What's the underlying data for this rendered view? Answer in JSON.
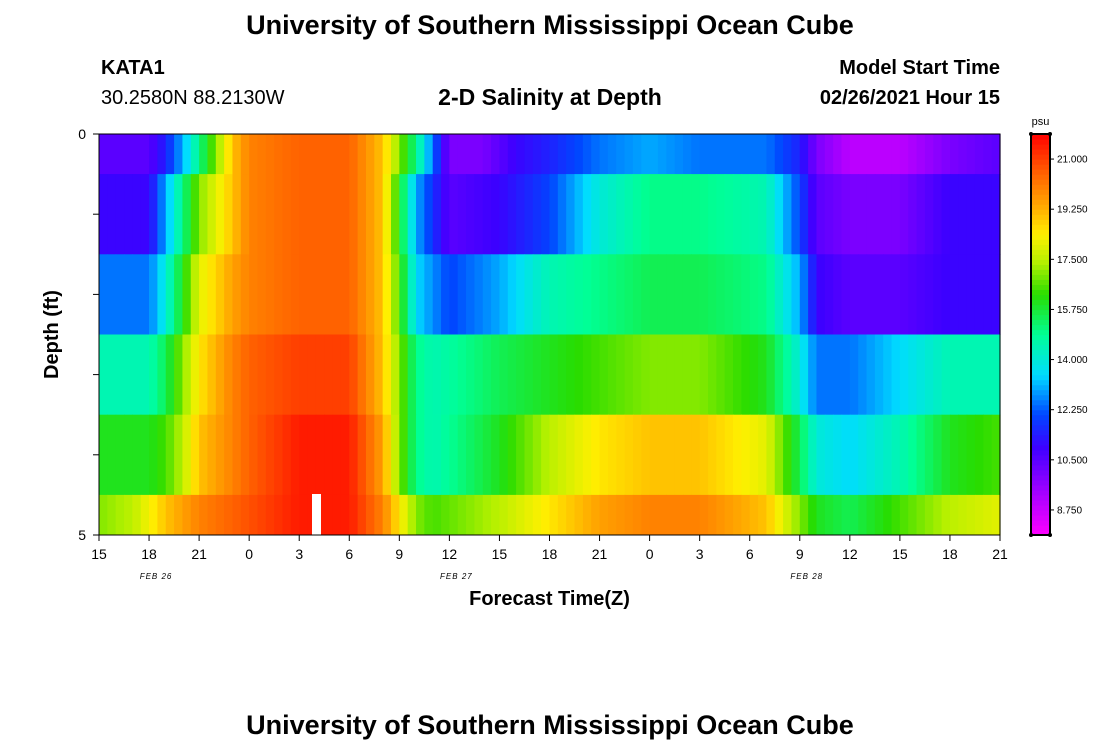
{
  "header": {
    "title": "University of Southern Mississippi Ocean Cube",
    "station": "KATA1",
    "coordinates": "30.2580N 88.2130W",
    "subtitle": "2-D Salinity at Depth",
    "model_start_label": "Model Start Time",
    "model_start_value": "02/26/2021 Hour 15"
  },
  "footer": {
    "title": "University of Southern Mississippi Ocean Cube"
  },
  "chart_data": {
    "type": "heatmap",
    "title": "2-D Salinity at Depth",
    "xlabel": "Forecast Time(Z)",
    "ylabel": "Depth (ft)",
    "ylim": [
      0,
      5
    ],
    "y_tick_labels": [
      "0",
      "5"
    ],
    "x_tick_labels": [
      "15",
      "18",
      "21",
      "0",
      "3",
      "6",
      "9",
      "12",
      "15",
      "18",
      "21",
      "0",
      "3",
      "6",
      "9",
      "12",
      "15",
      "18",
      "21"
    ],
    "date_labels": [
      {
        "text": "FEB 26",
        "at_tick": 1
      },
      {
        "text": "FEB 27",
        "at_tick": 7
      },
      {
        "text": "FEB 28",
        "at_tick": 14
      }
    ],
    "x_hours": [
      0,
      54
    ],
    "colorbar": {
      "unit": "psu",
      "vmin": 7.875,
      "vmax": 21.875,
      "tick_values": [
        8.75,
        10.5,
        12.25,
        14.0,
        15.75,
        17.5,
        19.25,
        21.0
      ],
      "tick_labels": [
        "8.750",
        "10.500",
        "12.250",
        "14.000",
        "15.750",
        "17.500",
        "19.250",
        "21.000"
      ]
    },
    "grid": false,
    "rows": [
      {
        "depth_range": [
          0.0,
          0.5
        ],
        "hours": [
          0,
          3,
          4,
          5,
          6,
          8,
          9,
          12,
          15,
          17,
          18,
          19,
          21,
          23,
          24,
          25,
          27,
          30,
          33,
          36,
          40,
          42,
          43,
          45,
          48,
          51,
          54
        ],
        "values": [
          10.5,
          10.5,
          11.5,
          13.0,
          15.0,
          19.0,
          20.0,
          20.5,
          20.5,
          19.0,
          17.0,
          15.0,
          10.0,
          10.0,
          10.5,
          11.0,
          11.5,
          12.5,
          13.0,
          12.5,
          12.5,
          11.5,
          10.0,
          9.0,
          9.0,
          10.0,
          10.5
        ]
      },
      {
        "depth_range": [
          0.5,
          1.5
        ],
        "hours": [
          0,
          3,
          4,
          5,
          6,
          8,
          9,
          12,
          15,
          17,
          18,
          19,
          21,
          24,
          27,
          30,
          33,
          36,
          40,
          42,
          43,
          45,
          48,
          51,
          54
        ],
        "values": [
          11.0,
          11.0,
          13.0,
          15.0,
          17.0,
          19.0,
          20.0,
          20.5,
          20.5,
          19.0,
          16.0,
          13.0,
          10.5,
          11.0,
          12.0,
          14.0,
          15.0,
          15.0,
          14.5,
          12.0,
          10.5,
          10.0,
          10.0,
          11.0,
          11.0
        ]
      },
      {
        "depth_range": [
          1.5,
          2.5
        ],
        "hours": [
          0,
          3,
          4,
          5,
          6,
          8,
          9,
          12,
          15,
          17,
          18,
          19,
          21,
          24,
          27,
          30,
          33,
          36,
          40,
          42,
          43,
          45,
          48,
          51,
          54
        ],
        "values": [
          12.5,
          12.5,
          14.0,
          16.0,
          18.0,
          19.5,
          20.0,
          20.5,
          20.5,
          19.0,
          16.5,
          13.5,
          12.0,
          13.0,
          14.5,
          15.0,
          15.5,
          15.5,
          15.0,
          13.0,
          11.0,
          10.5,
          10.5,
          11.0,
          11.0
        ]
      },
      {
        "depth_range": [
          2.5,
          3.5
        ],
        "hours": [
          0,
          3,
          4,
          5,
          6,
          8,
          9,
          12,
          15,
          17,
          18,
          19,
          20,
          24,
          27,
          30,
          33,
          36,
          40,
          42,
          43,
          45,
          48,
          51,
          54
        ],
        "values": [
          14.5,
          14.5,
          15.5,
          17.0,
          18.5,
          20.0,
          20.5,
          21.0,
          21.0,
          19.0,
          17.0,
          15.0,
          14.5,
          15.5,
          16.0,
          16.5,
          17.0,
          17.0,
          16.0,
          14.0,
          12.5,
          12.5,
          13.5,
          14.5,
          14.5
        ]
      },
      {
        "depth_range": [
          3.5,
          4.5
        ],
        "hours": [
          0,
          3,
          4,
          5,
          6,
          8,
          9,
          12,
          15,
          17,
          18,
          19,
          20,
          24,
          27,
          30,
          33,
          36,
          40,
          42,
          43,
          45,
          48,
          51,
          54
        ],
        "values": [
          16.0,
          16.0,
          16.5,
          17.5,
          19.0,
          20.0,
          20.5,
          21.5,
          21.5,
          19.5,
          17.0,
          15.0,
          14.5,
          16.0,
          17.5,
          18.5,
          19.0,
          19.0,
          18.0,
          15.5,
          14.0,
          13.5,
          14.5,
          16.0,
          16.5
        ]
      },
      {
        "depth_range": [
          4.5,
          5.0
        ],
        "hours": [
          0,
          2,
          4,
          6,
          8,
          10,
          12,
          15,
          17,
          18,
          19,
          20,
          22,
          24,
          27,
          30,
          33,
          36,
          40,
          42,
          43,
          45,
          48,
          51,
          54
        ],
        "values": [
          17.0,
          17.5,
          19.0,
          20.0,
          20.5,
          21.0,
          21.5,
          21.5,
          20.0,
          18.5,
          17.0,
          16.5,
          17.0,
          17.5,
          18.5,
          19.5,
          20.0,
          20.0,
          19.0,
          17.0,
          16.0,
          15.5,
          16.5,
          17.5,
          18.0
        ]
      }
    ]
  }
}
